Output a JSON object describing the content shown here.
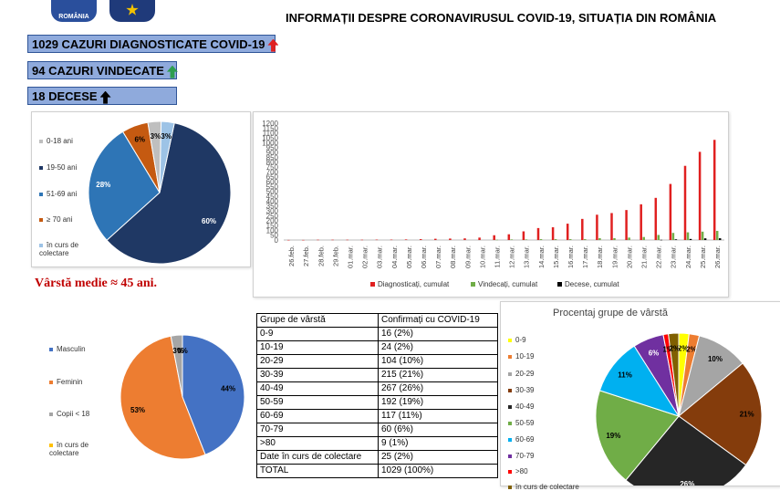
{
  "header": {
    "title": "INFORMAȚII DESPRE CORONAVIRUSUL COVID-19, SITUAȚIA DIN ROMÂNIA",
    "logo1_text": "ROMÂNIA"
  },
  "stats": [
    {
      "text": "1029 CAZURI DIAGNOSTICATE COVID-19",
      "arrow_color": "#e02020",
      "arrow": "up-arrow"
    },
    {
      "text": "94 CAZURI VINDECATE",
      "arrow_color": "#2e9e4f",
      "arrow": "up-arrow"
    },
    {
      "text": "18 DECESE",
      "arrow_color": "#000000",
      "arrow": "up-arrow"
    }
  ],
  "median_age": "Vârstă medie ≈ 45 ani.",
  "chart_data": [
    {
      "id": "age-pie",
      "type": "pie",
      "title": "",
      "legend_position": "left",
      "labels": [
        "0-18 ani",
        "19-50 ani",
        "51-69 ani",
        "≥ 70 ani",
        "în curs de colectare"
      ],
      "values": [
        3,
        60,
        28,
        6,
        3
      ],
      "value_labels": [
        "3%",
        "60%",
        "28%",
        "6%",
        "3%"
      ],
      "colors": [
        "#bfbfbf",
        "#1f3864",
        "#2e75b6",
        "#c55a11",
        "#9dc3e6"
      ]
    },
    {
      "id": "cumulative-line",
      "type": "bar",
      "title": "",
      "ylim": [
        0,
        1200
      ],
      "yticks": [
        0,
        50,
        100,
        150,
        200,
        250,
        300,
        350,
        400,
        450,
        500,
        550,
        600,
        650,
        700,
        750,
        800,
        850,
        900,
        950,
        1000,
        1050,
        1100,
        1150,
        1200
      ],
      "categories": [
        "26.feb.",
        "27.feb.",
        "28.feb.",
        "29.feb.",
        "01.mar.",
        "02.mar.",
        "03.mar.",
        "04.mar.",
        "05.mar.",
        "06.mar.",
        "07.mar.",
        "08.mar.",
        "09.mar.",
        "10.mar.",
        "11.mar.",
        "12.mar.",
        "13.mar.",
        "14.mar.",
        "15.mar.",
        "16.mar.",
        "17.mar.",
        "18.mar.",
        "19.mar.",
        "20.mar.",
        "21.mar.",
        "22.mar.",
        "23.mar.",
        "24.mar.",
        "25.mar.",
        "26.mar."
      ],
      "series": [
        {
          "name": "Diagnosticați, cumulat",
          "color": "#e02020",
          "values": [
            1,
            1,
            3,
            3,
            3,
            3,
            4,
            4,
            6,
            9,
            13,
            15,
            17,
            25,
            49,
            59,
            89,
            123,
            131,
            168,
            217,
            260,
            277,
            308,
            367,
            433,
            576,
            762,
            906,
            1029
          ]
        },
        {
          "name": "Vindecați, cumulat",
          "color": "#70ad47",
          "values": [
            0,
            0,
            0,
            0,
            0,
            0,
            0,
            0,
            0,
            0,
            0,
            0,
            0,
            0,
            3,
            6,
            6,
            9,
            9,
            9,
            9,
            19,
            19,
            25,
            31,
            52,
            73,
            79,
            86,
            94
          ]
        },
        {
          "name": "Decese, cumulat",
          "color": "#000000",
          "values": [
            0,
            0,
            0,
            0,
            0,
            0,
            0,
            0,
            0,
            0,
            0,
            0,
            0,
            0,
            0,
            0,
            0,
            0,
            0,
            0,
            0,
            0,
            0,
            0,
            0,
            2,
            7,
            11,
            17,
            18
          ]
        }
      ]
    },
    {
      "id": "sex-pie",
      "type": "pie",
      "title": "",
      "legend_position": "left",
      "labels": [
        "Masculin",
        "Feminin",
        "Copii < 18",
        "în curs de colectare"
      ],
      "values": [
        44,
        53,
        3,
        0
      ],
      "value_labels": [
        "44%",
        "53%",
        "3%",
        "0%"
      ],
      "colors": [
        "#4472c4",
        "#ed7d31",
        "#a5a5a5",
        "#ffc000"
      ]
    },
    {
      "id": "age-table",
      "type": "table",
      "columns": [
        "Grupe de vârstă",
        "Confirmați cu COVID-19"
      ],
      "rows": [
        [
          "0-9",
          "16 (2%)"
        ],
        [
          "10-19",
          "24 (2%)"
        ],
        [
          "20-29",
          "104 (10%)"
        ],
        [
          "30-39",
          "215 (21%)"
        ],
        [
          "40-49",
          "267 (26%)"
        ],
        [
          "50-59",
          "192 (19%)"
        ],
        [
          "60-69",
          "117 (11%)"
        ],
        [
          "70-79",
          "60 (6%)"
        ],
        [
          ">80",
          "9 (1%)"
        ],
        [
          "Date în curs de colectare",
          "25 (2%)"
        ],
        [
          "TOTAL",
          "1029 (100%)"
        ]
      ]
    },
    {
      "id": "groups-pie",
      "type": "pie",
      "title": "Procentaj grupe de vârstă",
      "legend_position": "left",
      "labels": [
        "0-9",
        "10-19",
        "20-29",
        "30-39",
        "40-49",
        "50-59",
        "60-69",
        "70-79",
        ">80",
        "în curs de colectare"
      ],
      "values": [
        2,
        2,
        10,
        21,
        26,
        19,
        11,
        6,
        1,
        2
      ],
      "value_labels": [
        "2%",
        "2%",
        "10%",
        "21%",
        "26%",
        "19%",
        "11%",
        "6%",
        "1%",
        "2%"
      ],
      "colors": [
        "#ffff00",
        "#ed7d31",
        "#a5a5a5",
        "#843c0c",
        "#262626",
        "#70ad47",
        "#00b0f0",
        "#7030a0",
        "#ff0000",
        "#806000"
      ]
    }
  ]
}
